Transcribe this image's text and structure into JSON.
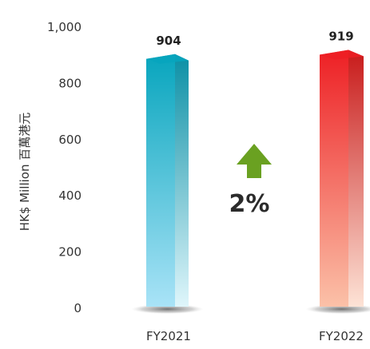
{
  "chart_data": {
    "type": "bar",
    "categories": [
      "FY2021",
      "FY2022"
    ],
    "values": [
      904,
      919
    ],
    "ylabel": "HK$ Million 百萬港元",
    "ylim": [
      0,
      1000
    ],
    "yticks": [
      "0",
      "200",
      "400",
      "600",
      "800",
      "1,000"
    ],
    "value_labels": [
      "904",
      "919"
    ],
    "annotation": "2%",
    "annotation_direction": "up",
    "colors": {
      "bar1_top": "#07a5bd",
      "bar1_bottom": "#a9e3f7",
      "bar1_side": "#0b8fa5",
      "bar2_top": "#ed1f24",
      "bar2_bottom": "#fbc1a8",
      "bar2_side": "#c81a1a",
      "arrow": "#6aa121"
    },
    "grid": false
  }
}
